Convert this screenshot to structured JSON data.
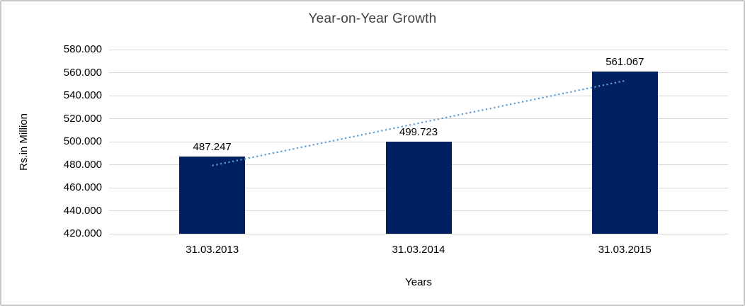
{
  "frame": {
    "background": "#FFFFFF",
    "border_color": "#C7C7C7"
  },
  "chart_data": {
    "type": "bar",
    "title": "Year-on-Year Growth",
    "xlabel": "Years",
    "ylabel": "Rs.in Million",
    "categories": [
      "31.03.2013",
      "31.03.2014",
      "31.03.2015"
    ],
    "values": [
      487.247,
      499.723,
      561.067
    ],
    "data_labels": [
      "487.247",
      "499.723",
      "561.067"
    ],
    "ylim": [
      420,
      580
    ],
    "ytick_step": 20,
    "ytick_labels": [
      "420.000",
      "440.000",
      "460.000",
      "480.000",
      "500.000",
      "520.000",
      "540.000",
      "560.000",
      "580.000"
    ],
    "grid": true,
    "legend": "none",
    "gridline_color": "#D9D9D9",
    "bar_color": "#002060",
    "text_color": "#000000",
    "title_color": "#404040",
    "trendline": {
      "type": "linear",
      "style": "dotted",
      "color": "#5B9BD5",
      "start_value": 479.2,
      "end_value": 552.9
    }
  }
}
